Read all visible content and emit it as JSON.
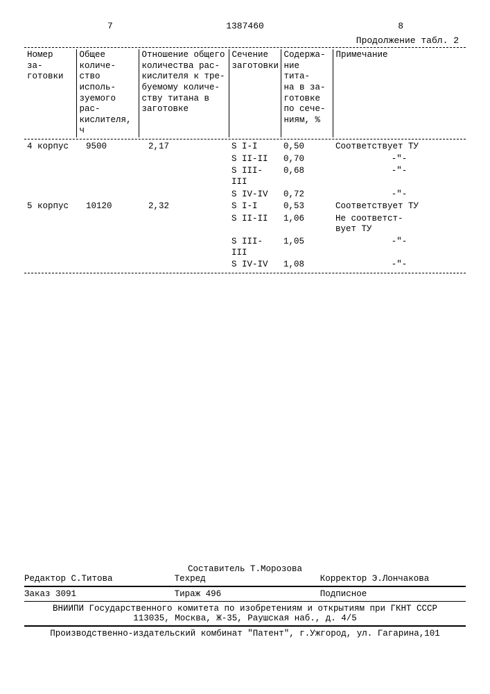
{
  "page": {
    "left_num": "7",
    "doc_num": "1387460",
    "right_num": "8",
    "continuation": "Продолжение табл. 2"
  },
  "table": {
    "headers": {
      "c0": "Номер за-\nготовки",
      "c1": "Общее количе-\nство исполь-\nзуемого рас-\nкислителя, ч",
      "c2": "Отношение общего\nколичества рас-\nкислителя к тре-\nбуемому количе-\nству титана в\nзаготовке",
      "c3": "Сечение\nзаготовки",
      "c4": "Содержа-\nние тита-\nна в за-\nготовке\nпо сече-\nниям, %",
      "c5": "Примечание"
    },
    "rows": [
      {
        "c0": "4 корпус",
        "c1": "9500",
        "c2": "2,17",
        "c3": "S I-I",
        "c4": "0,50",
        "c5": "Соответствует ТУ"
      },
      {
        "c0": "",
        "c1": "",
        "c2": "",
        "c3": "S II-II",
        "c4": "0,70",
        "c5": "-\"-"
      },
      {
        "c0": "",
        "c1": "",
        "c2": "",
        "c3": "S III-III",
        "c4": "0,68",
        "c5": "-\"-"
      },
      {
        "c0": "",
        "c1": "",
        "c2": "",
        "c3": "S IV-IV",
        "c4": "0,72",
        "c5": "-\"-"
      },
      {
        "c0": "5 корпус",
        "c1": "10120",
        "c2": "2,32",
        "c3": "S I-I",
        "c4": "0,53",
        "c5": "Соответствует ТУ"
      },
      {
        "c0": "",
        "c1": "",
        "c2": "",
        "c3": "S II-II",
        "c4": "1,06",
        "c5": "Не соответст-\nвует ТУ"
      },
      {
        "c0": "",
        "c1": "",
        "c2": "",
        "c3": "S III-III",
        "c4": "1,05",
        "c5": "-\"-"
      },
      {
        "c0": "",
        "c1": "",
        "c2": "",
        "c3": "S IV-IV",
        "c4": "1,08",
        "c5": "-\"-"
      }
    ]
  },
  "footer": {
    "compiler": "Составитель Т.Морозова",
    "editor": "Редактор С.Титова",
    "tech": "Техред",
    "corrector": "Корректор Э.Лончакова",
    "order": "Заказ 3091",
    "tirazh": "Тираж 496",
    "subscription": "Подписное",
    "org_line1": "ВНИИПИ Государственного комитета по изобретениям и открытиям при ГКНТ СССР",
    "org_line2": "113035, Москва, Ж-35, Раушская наб., д. 4/5",
    "printer": "Производственно-издательский комбинат \"Патент\", г.Ужгород, ул. Гагарина,101"
  }
}
